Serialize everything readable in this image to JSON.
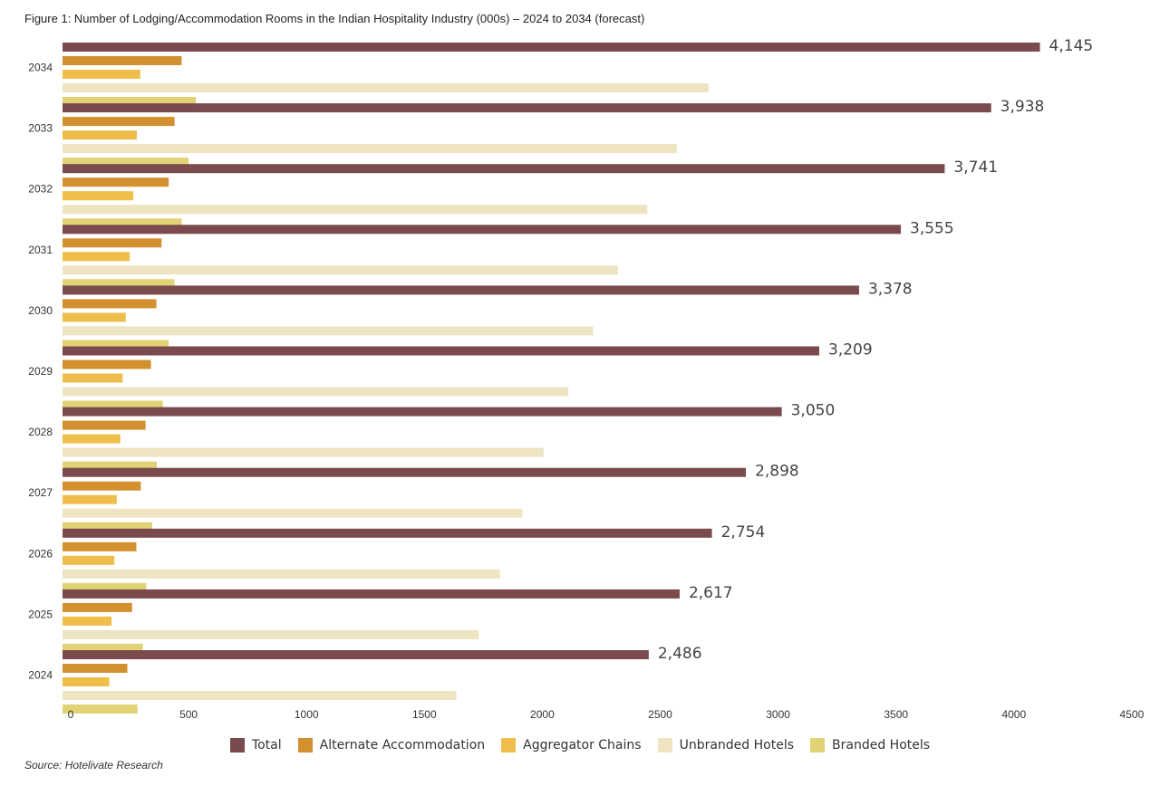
{
  "title": "Figure 1: Number of Lodging/Accommodation Rooms in the Indian Hospitality Industry (000s) – 2024 to 2034 (forecast)",
  "source": "Source: Hotelivate Research",
  "colors": {
    "Total": "#7a4a4c",
    "Alternate Accommodation": "#d3902f",
    "Aggregator Chains": "#efbd4a",
    "Unbranded Hotels": "#eee4c2",
    "Branded Hotels": "#e2d276"
  },
  "chart_data": {
    "type": "bar",
    "orientation": "horizontal",
    "title": "Figure 1: Number of Lodging/Accommodation Rooms in the Indian Hospitality Industry (000s) – 2024 to 2034 (forecast)",
    "xlabel": "",
    "ylabel": "",
    "xlim": [
      0,
      4500
    ],
    "xticks": [
      0,
      500,
      1000,
      1500,
      2000,
      2500,
      3000,
      3500,
      4000,
      4500
    ],
    "grid": false,
    "legend": "bottom",
    "categories": [
      "2034",
      "2033",
      "2032",
      "2031",
      "2030",
      "2029",
      "2028",
      "2027",
      "2026",
      "2025",
      "2024"
    ],
    "series": [
      {
        "name": "Total",
        "values": [
          4145,
          3938,
          3741,
          3555,
          3378,
          3209,
          3050,
          2898,
          2754,
          2617,
          2486
        ],
        "labels": [
          "4,145",
          "3,938",
          "3,741",
          "3,555",
          "3,378",
          "3,209",
          "3,050",
          "2,898",
          "2,754",
          "2,617",
          "2,486"
        ]
      },
      {
        "name": "Alternate Accommodation",
        "values": [
          505,
          475,
          450,
          420,
          398,
          375,
          352,
          332,
          313,
          295,
          275
        ]
      },
      {
        "name": "Aggregator Chains",
        "values": [
          330,
          315,
          300,
          285,
          268,
          255,
          245,
          230,
          220,
          208,
          198
        ]
      },
      {
        "name": "Unbranded Hotels",
        "values": [
          2740,
          2605,
          2480,
          2355,
          2250,
          2145,
          2040,
          1950,
          1855,
          1765,
          1670
        ]
      },
      {
        "name": "Branded Hotels",
        "values": [
          565,
          535,
          505,
          475,
          450,
          425,
          400,
          380,
          355,
          340,
          318
        ]
      }
    ]
  }
}
